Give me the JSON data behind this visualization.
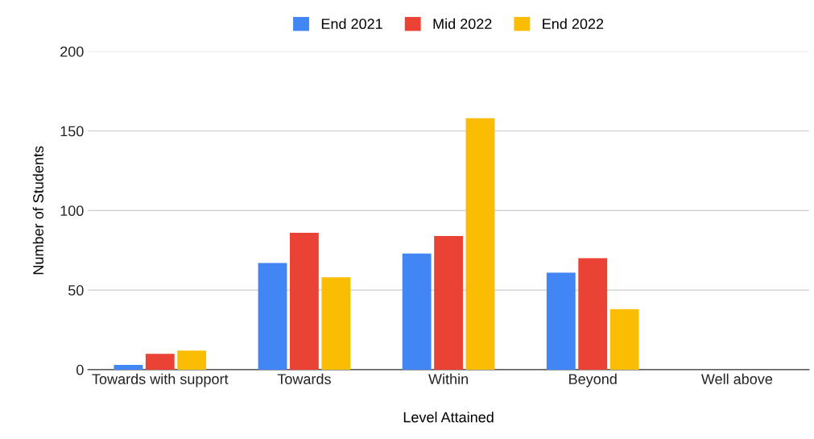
{
  "chart_data": {
    "type": "bar",
    "xlabel": "Level Attained",
    "ylabel": "Number of Students",
    "categories": [
      "Towards with support",
      "Towards",
      "Within",
      "Beyond",
      "Well above"
    ],
    "series": [
      {
        "name": "End 2021",
        "color": "#4285f4",
        "values": [
          3,
          67,
          73,
          61,
          0
        ]
      },
      {
        "name": "Mid 2022",
        "color": "#ea4335",
        "values": [
          10,
          86,
          84,
          70,
          0
        ]
      },
      {
        "name": "End 2022",
        "color": "#fbbc04",
        "values": [
          12,
          58,
          158,
          38,
          0
        ]
      }
    ],
    "ylim": [
      0,
      200
    ],
    "yticks": [
      0,
      50,
      100,
      150,
      200
    ],
    "grid": "y",
    "legend": "top"
  }
}
